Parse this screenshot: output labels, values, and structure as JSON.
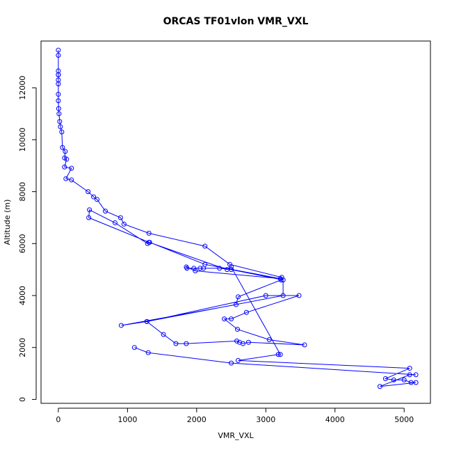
{
  "chart_data": {
    "type": "scatter",
    "title": "ORCAS TF01vlon VMR_VXL",
    "xlabel": "VMR_VXL",
    "ylabel": "Altitude (m)",
    "xlim": [
      -250,
      5380
    ],
    "ylim": [
      -150,
      13800
    ],
    "xticks": [
      0,
      1000,
      2000,
      3000,
      4000,
      5000
    ],
    "yticks": [
      0,
      2000,
      4000,
      6000,
      8000,
      10000,
      12000
    ],
    "grid": false,
    "line_color": "#0000ff",
    "marker": "open-circle",
    "connected": true,
    "points": [
      [
        0,
        13450
      ],
      [
        0,
        13250
      ],
      [
        0,
        12650
      ],
      [
        0,
        12500
      ],
      [
        0,
        12500
      ],
      [
        0,
        12300
      ],
      [
        0,
        12150
      ],
      [
        0,
        11750
      ],
      [
        0,
        11500
      ],
      [
        5,
        11200
      ],
      [
        10,
        11000
      ],
      [
        20,
        10700
      ],
      [
        30,
        10500
      ],
      [
        50,
        10300
      ],
      [
        60,
        9700
      ],
      [
        100,
        9550
      ],
      [
        90,
        9300
      ],
      [
        120,
        9250
      ],
      [
        90,
        8950
      ],
      [
        190,
        8900
      ],
      [
        110,
        8500
      ],
      [
        190,
        8450
      ],
      [
        430,
        8000
      ],
      [
        510,
        7800
      ],
      [
        560,
        7700
      ],
      [
        680,
        7250
      ],
      [
        900,
        7000
      ],
      [
        950,
        6750
      ],
      [
        1310,
        6400
      ],
      [
        2120,
        5900
      ],
      [
        2480,
        5200
      ],
      [
        3230,
        4700
      ],
      [
        3220,
        4600
      ],
      [
        2600,
        3950
      ],
      [
        2570,
        3650
      ],
      [
        910,
        2850
      ],
      [
        1280,
        3000
      ],
      [
        3000,
        4000
      ],
      [
        3480,
        4000
      ],
      [
        2720,
        3350
      ],
      [
        2500,
        3100
      ],
      [
        2400,
        3100
      ],
      [
        2590,
        2700
      ],
      [
        3050,
        2300
      ],
      [
        3560,
        2100
      ],
      [
        2750,
        2200
      ],
      [
        2670,
        2150
      ],
      [
        2620,
        2200
      ],
      [
        2580,
        2250
      ],
      [
        1850,
        2150
      ],
      [
        1700,
        2150
      ],
      [
        1520,
        2500
      ],
      [
        1280,
        3000
      ],
      [
        3250,
        4000
      ],
      [
        3250,
        4600
      ],
      [
        2500,
        5000
      ],
      [
        2330,
        5050
      ],
      [
        2100,
        5050
      ],
      [
        2050,
        5050
      ],
      [
        1960,
        5050
      ],
      [
        1860,
        5050
      ],
      [
        1850,
        5100
      ],
      [
        1980,
        4950
      ],
      [
        3210,
        4650
      ],
      [
        2120,
        5200
      ],
      [
        1320,
        6050
      ],
      [
        1290,
        6000
      ],
      [
        820,
        6800
      ],
      [
        450,
        7300
      ],
      [
        440,
        7000
      ],
      [
        1310,
        6050
      ],
      [
        2440,
        5000
      ],
      [
        2500,
        5100
      ],
      [
        3210,
        1730
      ],
      [
        3180,
        1730
      ],
      [
        2600,
        1500
      ],
      [
        5080,
        1200
      ],
      [
        4730,
        800
      ],
      [
        4850,
        750
      ],
      [
        5000,
        750
      ],
      [
        5100,
        650
      ],
      [
        5170,
        650
      ],
      [
        4650,
        500
      ],
      [
        5080,
        950
      ],
      [
        5170,
        950
      ],
      [
        2500,
        1400
      ],
      [
        1300,
        1800
      ],
      [
        1100,
        2000
      ]
    ]
  }
}
